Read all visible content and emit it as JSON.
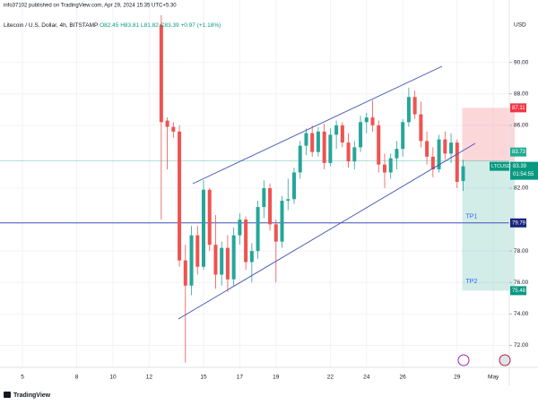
{
  "header": {
    "text": "info37102 published on TradingView.com, Apr 29, 2024 15:35 UTC+5:30"
  },
  "footer": {
    "brand": "TradingView"
  },
  "chart_data": {
    "type": "candlestick",
    "title": "Litecoin / U.S. Dollar, 4h, BITSTAMP",
    "ohlc_legend": [
      "O82.45",
      "H83.81",
      "L81.82",
      "C83.39",
      "+0.97 (+1.18%)"
    ],
    "y_axis_label": "USD",
    "categories": [
      "5",
      null,
      null,
      null,
      null,
      null,
      null,
      null,
      null,
      "8",
      null,
      null,
      null,
      null,
      null,
      "10",
      null,
      null,
      null,
      null,
      null,
      "12",
      null,
      null,
      null,
      null,
      null,
      null,
      null,
      null,
      "15",
      null,
      null,
      null,
      null,
      null,
      "17",
      null,
      null,
      null,
      null,
      null,
      "19",
      null,
      null,
      null,
      null,
      null,
      null,
      null,
      null,
      "22",
      null,
      null,
      null,
      null,
      null,
      "24",
      null,
      null,
      null,
      null,
      null,
      "26",
      null,
      null,
      null,
      null,
      null,
      null,
      null,
      null,
      "29",
      null,
      null,
      null,
      null,
      null,
      "May",
      null,
      null
    ],
    "open": [
      null,
      null,
      null,
      null,
      null,
      null,
      null,
      null,
      null,
      null,
      null,
      null,
      null,
      null,
      null,
      null,
      null,
      null,
      null,
      null,
      null,
      null,
      null,
      92.4,
      86.3,
      85.9,
      85.6,
      77.4,
      75.8,
      79.0,
      77.0,
      81.9,
      78.4,
      76.5,
      78.2,
      76.2,
      79.0,
      80.0,
      77.3,
      78.0,
      80.8,
      82.0,
      79.7,
      78.6,
      81.2,
      81.3,
      83.0,
      84.7,
      85.5,
      84.3,
      85.6,
      83.6,
      85.4,
      86.0,
      84.9,
      83.7,
      84.6,
      86.2,
      86.5,
      86.0,
      83.5,
      83.0,
      83.9,
      84.5,
      86.2,
      87.8,
      86.7,
      85.0,
      84.0,
      83.2,
      85.1,
      84.2,
      84.9,
      82.45,
      null,
      null,
      null,
      null,
      null,
      null,
      null
    ],
    "high": [
      null,
      null,
      null,
      null,
      null,
      null,
      null,
      null,
      null,
      null,
      null,
      null,
      null,
      null,
      null,
      null,
      null,
      null,
      null,
      null,
      null,
      null,
      null,
      93.0,
      86.5,
      86.2,
      86.0,
      78.4,
      79.6,
      79.6,
      82.5,
      82.0,
      80.3,
      78.6,
      79.0,
      79.5,
      80.4,
      80.2,
      78.5,
      81.2,
      82.5,
      82.3,
      80.0,
      81.5,
      82.6,
      83.3,
      85.0,
      85.8,
      86.0,
      85.9,
      86.1,
      85.8,
      86.3,
      86.2,
      85.5,
      85.0,
      86.6,
      86.8,
      87.6,
      86.3,
      84.2,
      84.2,
      85.0,
      86.4,
      88.4,
      88.2,
      87.5,
      85.6,
      84.6,
      85.4,
      85.6,
      85.5,
      85.1,
      83.81,
      null,
      null,
      null,
      null,
      null,
      null,
      null
    ],
    "low": [
      null,
      null,
      null,
      null,
      null,
      null,
      null,
      null,
      null,
      null,
      null,
      null,
      null,
      null,
      null,
      null,
      null,
      null,
      null,
      null,
      null,
      null,
      null,
      80.0,
      83.2,
      85.2,
      77.0,
      70.9,
      75.2,
      76.5,
      76.8,
      78.0,
      75.6,
      75.8,
      75.4,
      75.8,
      78.4,
      76.8,
      76.0,
      77.5,
      80.1,
      79.3,
      76.0,
      78.2,
      80.6,
      81.0,
      82.6,
      84.1,
      84.0,
      84.0,
      83.2,
      83.4,
      84.5,
      84.6,
      83.3,
      83.2,
      84.3,
      85.5,
      85.6,
      83.0,
      82.0,
      82.6,
      83.2,
      84.0,
      85.9,
      86.4,
      84.6,
      83.5,
      82.7,
      83.0,
      83.8,
      83.6,
      82.0,
      81.82,
      null,
      null,
      null,
      null,
      null,
      null,
      null
    ],
    "close": [
      null,
      null,
      null,
      null,
      null,
      null,
      null,
      null,
      null,
      null,
      null,
      null,
      null,
      null,
      null,
      null,
      null,
      null,
      null,
      null,
      null,
      null,
      null,
      86.2,
      85.9,
      85.6,
      77.4,
      75.8,
      79.0,
      77.0,
      81.9,
      78.4,
      76.5,
      78.2,
      76.2,
      79.0,
      80.0,
      77.3,
      78.0,
      80.8,
      82.0,
      79.7,
      78.6,
      81.2,
      81.3,
      83.0,
      84.7,
      85.5,
      84.3,
      85.6,
      83.6,
      85.4,
      86.0,
      84.9,
      83.7,
      84.6,
      86.2,
      86.5,
      86.0,
      83.5,
      83.0,
      83.9,
      84.5,
      86.2,
      87.8,
      86.7,
      85.0,
      84.0,
      83.2,
      85.1,
      84.2,
      84.9,
      82.4,
      83.39,
      null,
      null,
      null,
      null,
      null,
      null,
      null
    ],
    "up_color": "#26a69a",
    "down_color": "#ef5350",
    "ylim": [
      70.6,
      93.4
    ],
    "yticks": [
      {
        "value": 72,
        "label": "72.00"
      },
      {
        "value": 74,
        "label": "74.00"
      },
      {
        "value": 76,
        "label": "76.00"
      },
      {
        "value": 78,
        "label": "78.00"
      },
      {
        "value": 82,
        "label": "82.00"
      },
      {
        "value": 86,
        "label": "86.00"
      },
      {
        "value": 88,
        "label": "88.00"
      },
      {
        "value": 90,
        "label": "90.00"
      }
    ],
    "grid": true,
    "levels": {
      "stop": 87.11,
      "entry": 83.73,
      "tp1": {
        "label": "TP1",
        "value": 79.79
      },
      "tp2": {
        "label": "TP2",
        "value": 75.48
      },
      "last": {
        "symbol": "LTCUSD",
        "value": 83.39,
        "countdown": "01:54:55"
      }
    }
  }
}
